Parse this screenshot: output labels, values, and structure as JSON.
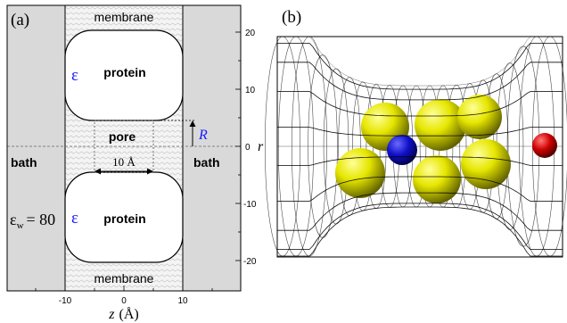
{
  "panel_a": {
    "label": "(a)",
    "membrane_top": "membrane",
    "membrane_bottom": "membrane",
    "protein_top": "protein",
    "protein_bottom": "protein",
    "epsilon_symbol": "ε",
    "pore": "pore",
    "bath_left": "bath",
    "bath_right": "bath",
    "width_label": "10 Å",
    "radius_label": "R",
    "eps_water_symbol": "ε",
    "eps_water_sub": "w",
    "eps_water_value": "= 80",
    "x_tick_labels": [
      "-10",
      "0",
      "10"
    ],
    "y_tick_labels": [
      "20",
      "10",
      "0",
      "-10",
      "-20"
    ],
    "r_label": "r",
    "z_label": "z",
    "z_unit": "(Å)",
    "colors": {
      "bath": "#d9d9d9",
      "membrane": "#f0f0f0",
      "protein": "#ffffff",
      "epsilon": "#1a1aff",
      "radius": "#1a1aff"
    }
  },
  "panel_b": {
    "label": "(b)",
    "colors": {
      "yellow_sphere": "#e6e600",
      "blue_sphere": "#1010c8",
      "red_sphere": "#d00000",
      "mesh": "#000000"
    }
  }
}
